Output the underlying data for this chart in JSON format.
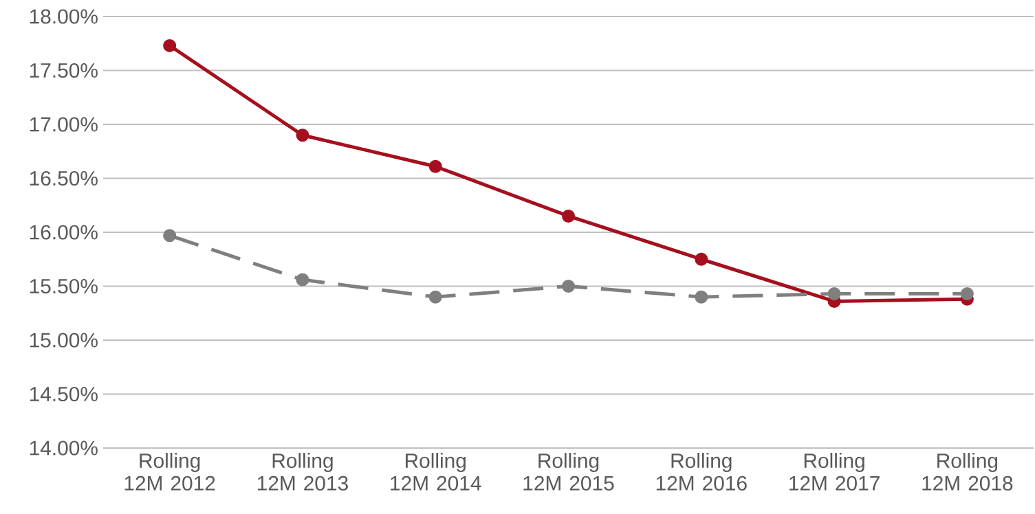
{
  "chart_data": {
    "type": "line",
    "categories": [
      "Rolling 12M 2012",
      "Rolling 12M 2013",
      "Rolling 12M 2014",
      "Rolling 12M 2015",
      "Rolling 12M 2016",
      "Rolling 12M 2017",
      "Rolling 12M 2018"
    ],
    "series": [
      {
        "color": "#a50f1e",
        "line_style": "solid",
        "values": [
          17.73,
          16.9,
          16.61,
          16.15,
          15.75,
          15.36,
          15.38
        ]
      },
      {
        "color": "#7f7f7f",
        "line_style": "dashed",
        "values": [
          15.97,
          15.56,
          15.4,
          15.5,
          15.4,
          15.43,
          15.43
        ]
      }
    ],
    "ylim": [
      14,
      18
    ],
    "yticks": [
      {
        "value": 14,
        "label": "14.00%"
      },
      {
        "value": 14.5,
        "label": "14.50%"
      },
      {
        "value": 15,
        "label": "15.00%"
      },
      {
        "value": 15.5,
        "label": "15.50%"
      },
      {
        "value": 16,
        "label": "16.00%"
      },
      {
        "value": 16.5,
        "label": "16.50%"
      },
      {
        "value": 17,
        "label": "17.00%"
      },
      {
        "value": 17.5,
        "label": "17.50%"
      },
      {
        "value": 18,
        "label": "18.00%"
      }
    ],
    "grid": "y",
    "marker": "circle",
    "legend": false
  }
}
